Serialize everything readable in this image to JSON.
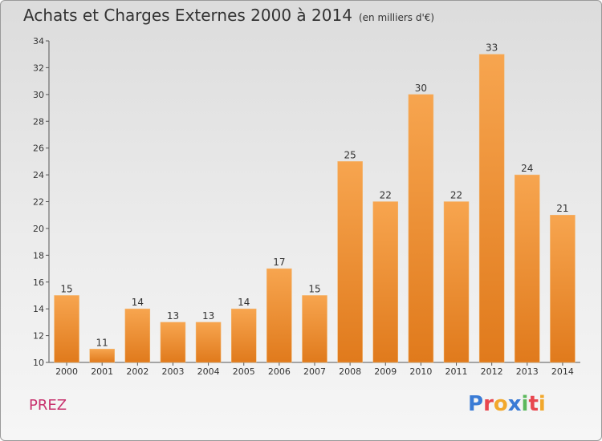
{
  "header": {
    "title": "Achats et Charges Externes 2000 à 2014",
    "subtitle": "(en milliers d'€)"
  },
  "footer": {
    "commune": "PREZ",
    "logo_text": "Proxiti"
  },
  "colors": {
    "bar_top": "#f7a54f",
    "bar_bottom": "#e07a1c",
    "commune_text": "#c8326e",
    "logo_letters": [
      "#3a7bd5",
      "#e8464e",
      "#f2a82c",
      "#3a7bd5",
      "#5cb85c",
      "#e8464e",
      "#f2a82c"
    ]
  },
  "chart_data": {
    "type": "bar",
    "title": "Achats et Charges Externes 2000 à 2014",
    "subtitle": "(en milliers d'€)",
    "xlabel": "",
    "ylabel": "",
    "categories": [
      "2000",
      "2001",
      "2002",
      "2003",
      "2004",
      "2005",
      "2006",
      "2007",
      "2008",
      "2009",
      "2010",
      "2011",
      "2012",
      "2013",
      "2014"
    ],
    "values": [
      15,
      11,
      14,
      13,
      13,
      14,
      17,
      15,
      25,
      22,
      30,
      22,
      33,
      24,
      21
    ],
    "ylim": [
      10,
      34
    ],
    "yticks": [
      10,
      12,
      14,
      16,
      18,
      20,
      22,
      24,
      26,
      28,
      30,
      32,
      34
    ],
    "grid": false,
    "data_labels": true
  }
}
